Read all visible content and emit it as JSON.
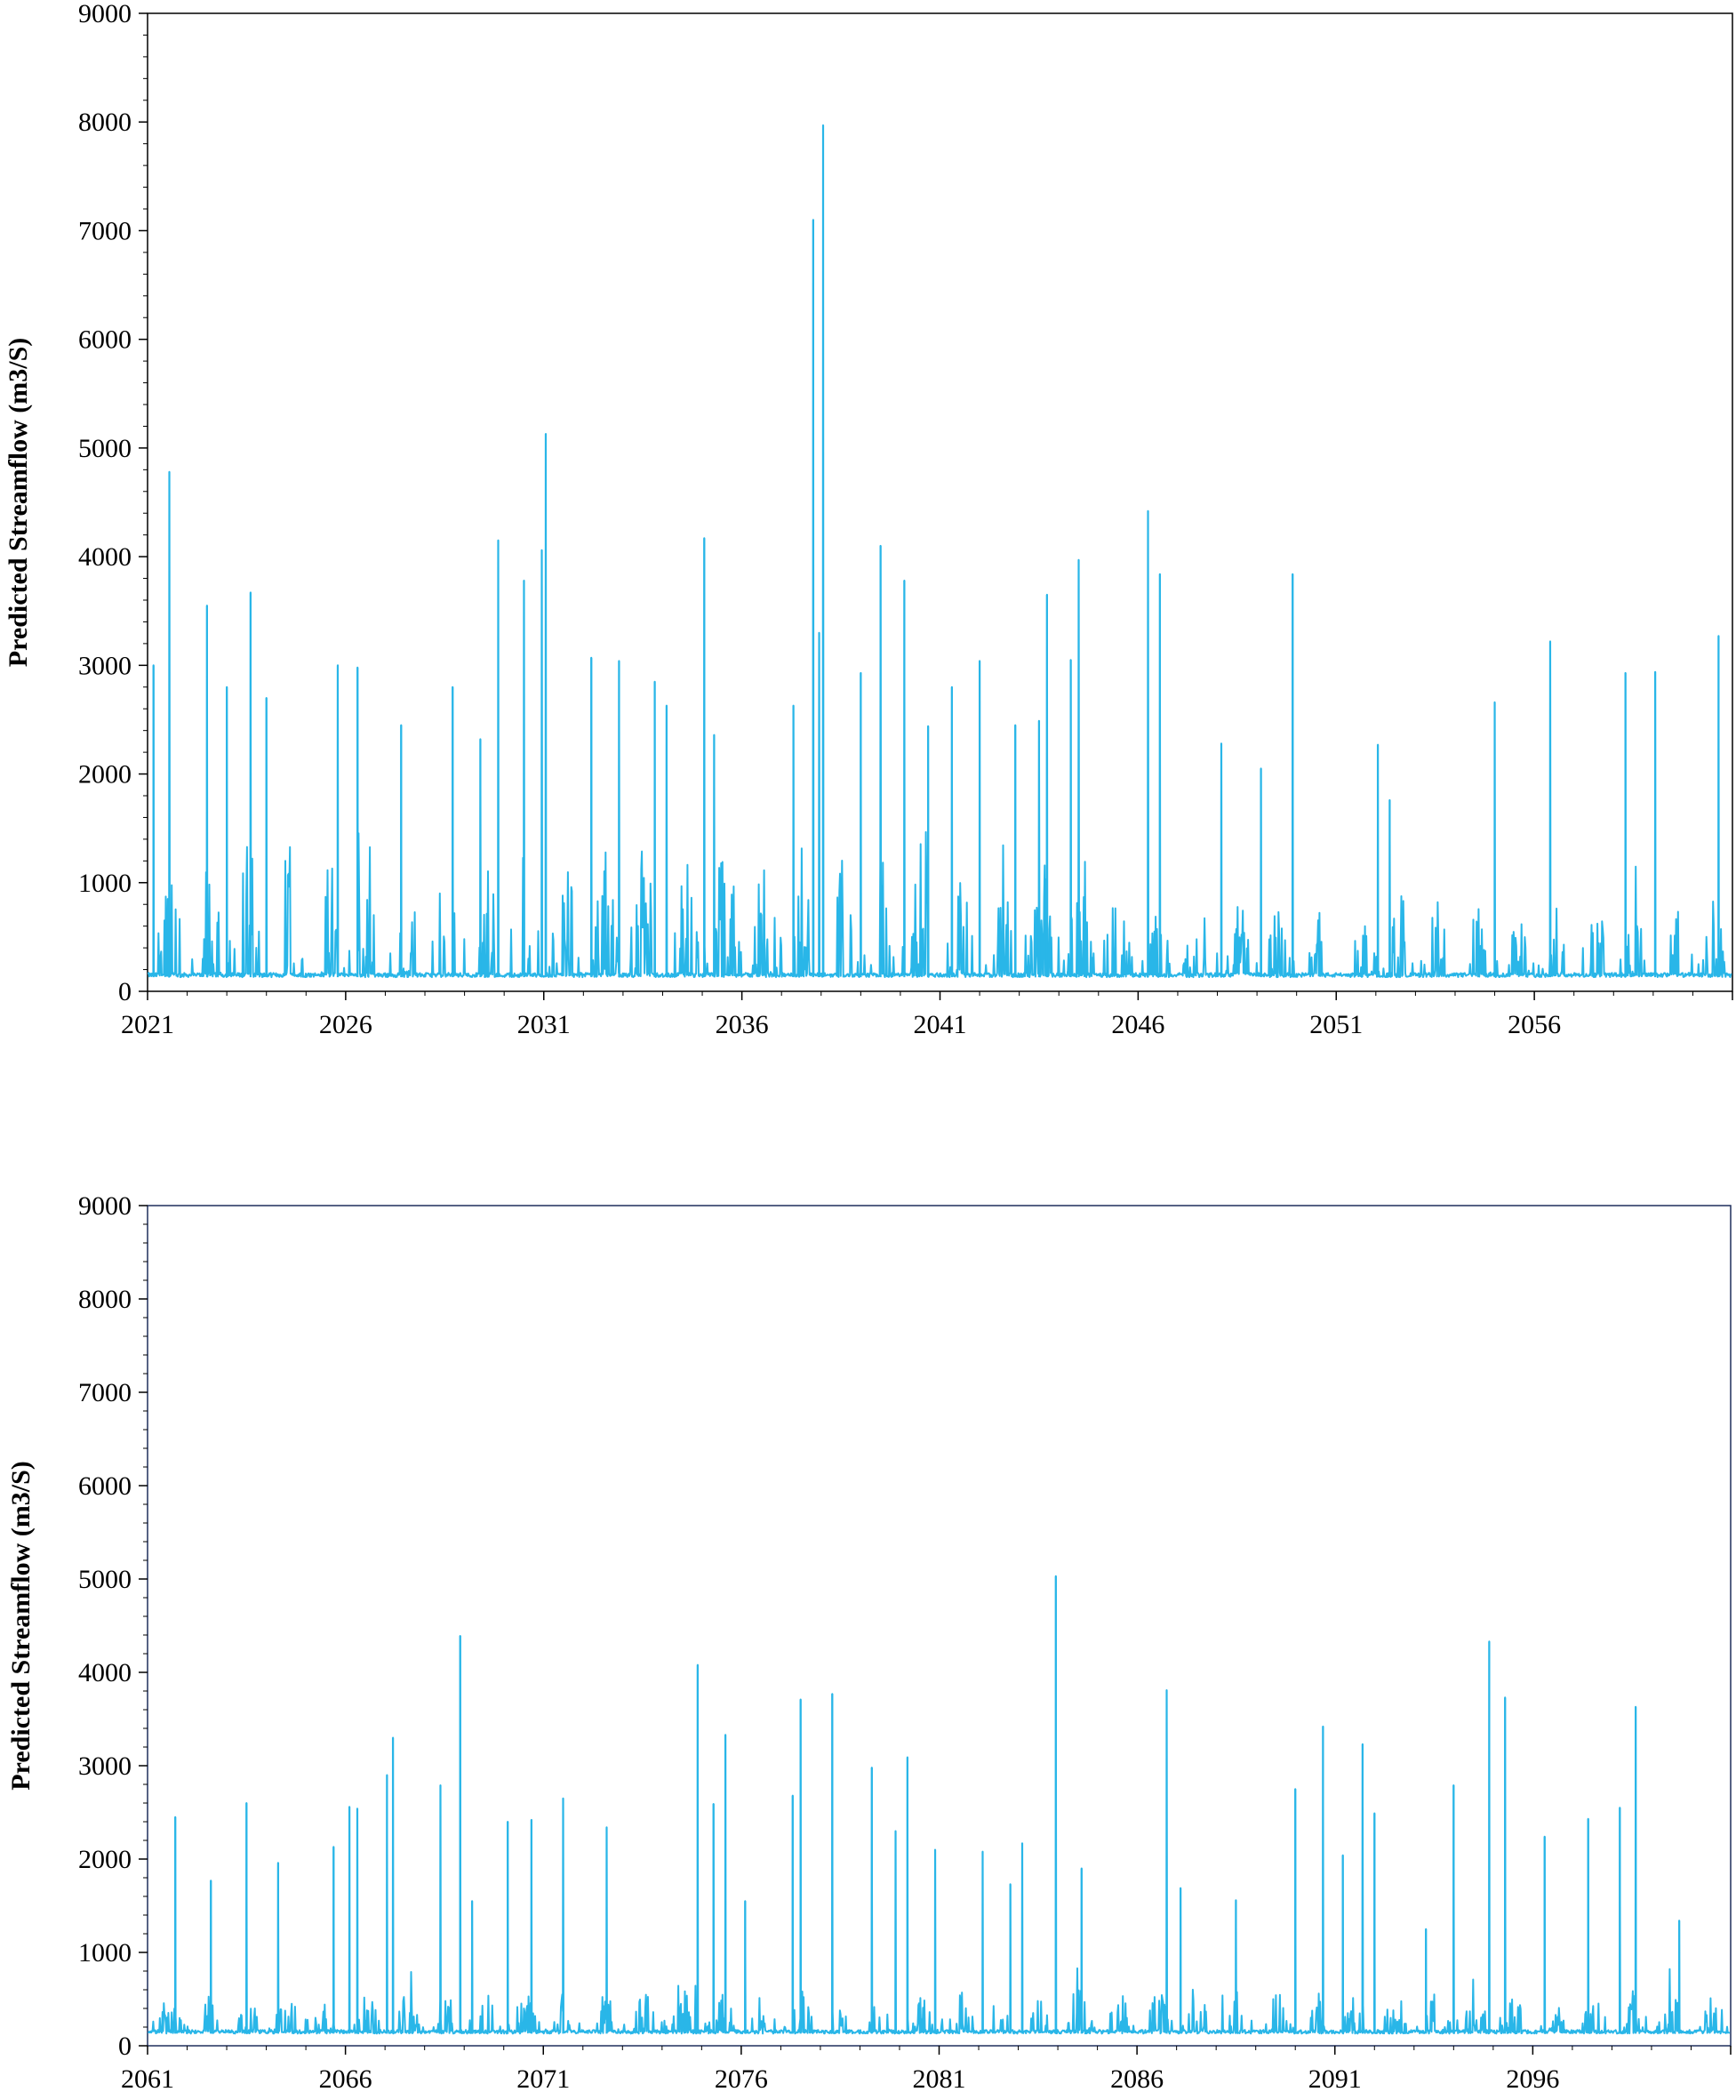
{
  "chart_data": [
    {
      "type": "line",
      "ylabel": "Predicted  Streamflow (m3/S)",
      "xlim": [
        2021,
        2061
      ],
      "ylim": [
        0,
        9000
      ],
      "yticks": [
        0,
        1000,
        2000,
        3000,
        4000,
        5000,
        6000,
        7000,
        8000,
        9000
      ],
      "xticks": [
        "2021",
        "2026",
        "2031",
        "2036",
        "2041",
        "2046",
        "2051",
        "2056"
      ],
      "baseflow": 130,
      "color": "#29b6e8",
      "peaks": [
        [
          2021.15,
          3000
        ],
        [
          2021.55,
          4780
        ],
        [
          2022.5,
          3550
        ],
        [
          2023.0,
          2800
        ],
        [
          2023.6,
          3670
        ],
        [
          2024.0,
          2700
        ],
        [
          2025.8,
          3000
        ],
        [
          2026.3,
          2980
        ],
        [
          2027.4,
          2450
        ],
        [
          2028.7,
          2800
        ],
        [
          2029.4,
          2320
        ],
        [
          2029.85,
          4150
        ],
        [
          2030.5,
          3780
        ],
        [
          2030.95,
          4060
        ],
        [
          2031.05,
          5130
        ],
        [
          2032.2,
          3070
        ],
        [
          2032.9,
          3040
        ],
        [
          2033.8,
          2850
        ],
        [
          2034.1,
          2630
        ],
        [
          2035.05,
          4170
        ],
        [
          2035.3,
          2360
        ],
        [
          2037.3,
          2630
        ],
        [
          2037.8,
          7100
        ],
        [
          2038.05,
          7970
        ],
        [
          2037.95,
          3300
        ],
        [
          2039.0,
          2930
        ],
        [
          2039.5,
          4100
        ],
        [
          2040.1,
          3780
        ],
        [
          2040.7,
          2440
        ],
        [
          2041.3,
          2800
        ],
        [
          2042.0,
          3040
        ],
        [
          2042.9,
          2450
        ],
        [
          2043.5,
          2490
        ],
        [
          2043.7,
          3650
        ],
        [
          2044.3,
          3050
        ],
        [
          2044.5,
          3970
        ],
        [
          2046.25,
          4420
        ],
        [
          2046.55,
          3840
        ],
        [
          2048.1,
          2280
        ],
        [
          2049.1,
          2050
        ],
        [
          2049.9,
          3840
        ],
        [
          2052.05,
          2270
        ],
        [
          2052.35,
          1760
        ],
        [
          2055.0,
          2660
        ],
        [
          2056.4,
          3220
        ],
        [
          2058.3,
          2930
        ],
        [
          2059.05,
          2940
        ],
        [
          2060.65,
          3270
        ]
      ]
    },
    {
      "type": "line",
      "ylabel": "Predicted  Streamflow (m3/S)",
      "xlim": [
        2061,
        2101
      ],
      "ylim": [
        0,
        9000
      ],
      "yticks": [
        0,
        1000,
        2000,
        3000,
        4000,
        5000,
        6000,
        7000,
        8000,
        9000
      ],
      "xticks": [
        "2061",
        "2066",
        "2071",
        "2076",
        "2081",
        "2086",
        "2091",
        "2096"
      ],
      "baseflow": 130,
      "color": "#29b6e8",
      "peaks": [
        [
          2061.7,
          2450
        ],
        [
          2062.6,
          1770
        ],
        [
          2063.5,
          2600
        ],
        [
          2064.3,
          1960
        ],
        [
          2065.7,
          2130
        ],
        [
          2066.1,
          2560
        ],
        [
          2066.3,
          2540
        ],
        [
          2067.05,
          2900
        ],
        [
          2067.2,
          3300
        ],
        [
          2068.4,
          2790
        ],
        [
          2068.9,
          4390
        ],
        [
          2069.2,
          1550
        ],
        [
          2070.1,
          2400
        ],
        [
          2070.7,
          2420
        ],
        [
          2071.5,
          2650
        ],
        [
          2072.6,
          2340
        ],
        [
          2074.9,
          4080
        ],
        [
          2075.3,
          2590
        ],
        [
          2075.6,
          3330
        ],
        [
          2076.1,
          1550
        ],
        [
          2077.3,
          2680
        ],
        [
          2077.5,
          3710
        ],
        [
          2078.3,
          3770
        ],
        [
          2079.3,
          2980
        ],
        [
          2079.9,
          2300
        ],
        [
          2080.2,
          3090
        ],
        [
          2080.9,
          2100
        ],
        [
          2082.1,
          2080
        ],
        [
          2082.8,
          1730
        ],
        [
          2083.1,
          2170
        ],
        [
          2083.95,
          5030
        ],
        [
          2084.6,
          1900
        ],
        [
          2086.75,
          3810
        ],
        [
          2087.1,
          1690
        ],
        [
          2088.5,
          1560
        ],
        [
          2090.0,
          2750
        ],
        [
          2090.7,
          3420
        ],
        [
          2091.2,
          2040
        ],
        [
          2091.7,
          3230
        ],
        [
          2092.0,
          2490
        ],
        [
          2093.3,
          1250
        ],
        [
          2094.0,
          2790
        ],
        [
          2094.9,
          4330
        ],
        [
          2095.3,
          3730
        ],
        [
          2096.3,
          2240
        ],
        [
          2097.4,
          2430
        ],
        [
          2098.2,
          2550
        ],
        [
          2098.6,
          3630
        ],
        [
          2099.7,
          1340
        ]
      ]
    }
  ]
}
